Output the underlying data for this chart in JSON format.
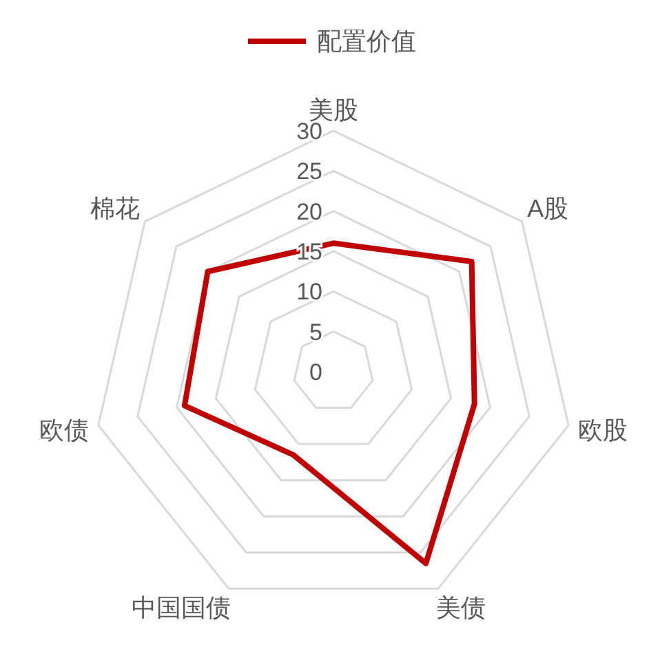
{
  "chart_data": {
    "type": "radar",
    "categories": [
      "美股",
      "A股",
      "欧股",
      "美债",
      "中国国债",
      "欧债",
      "棉花"
    ],
    "series": [
      {
        "name": "配置价值",
        "color": "#c00000",
        "values": [
          16,
          22,
          18,
          26.5,
          11.5,
          19,
          20
        ]
      }
    ],
    "ylim": [
      0,
      30
    ],
    "yticks": [
      0,
      5,
      10,
      15,
      20,
      25,
      30
    ],
    "grid": true,
    "legend": "top",
    "marker": "none"
  }
}
